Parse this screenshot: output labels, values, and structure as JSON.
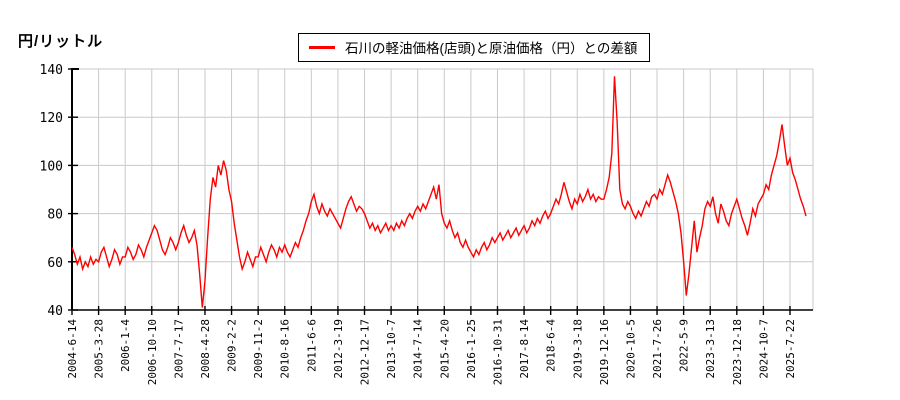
{
  "y_axis_title": "円/リットル",
  "legend": {
    "label": "石川の軽油価格(店頭)と原油価格（円）との差額",
    "series_color": "#ff0000"
  },
  "colors": {
    "background": "#ffffff",
    "grid": "#c9c9c9",
    "axis": "#000000",
    "series": "#ff0000"
  },
  "chart_data": {
    "type": "line",
    "title": "石川の軽油価格(店頭)と原油価格（円）との差額",
    "xlabel": "",
    "ylabel": "円/リットル",
    "ylim": [
      40,
      140
    ],
    "y_ticks": [
      40,
      60,
      80,
      100,
      120,
      140
    ],
    "grid": true,
    "legend_position": "top-center",
    "x_tick_labels": [
      "2004-6-14",
      "2005-3-28",
      "2006-1-4",
      "2006-10-10",
      "2007-7-17",
      "2008-4-28",
      "2009-2-2",
      "2009-11-2",
      "2010-8-16",
      "2011-6-6",
      "2012-3-19",
      "2012-12-17",
      "2013-10-7",
      "2014-7-14",
      "2015-4-20",
      "2016-1-25",
      "2016-10-31",
      "2017-8-14",
      "2018-6-4",
      "2019-3-18",
      "2019-12-16",
      "2020-10-5",
      "2021-7-26",
      "2022-5-9",
      "2023-3-13",
      "2023-12-18",
      "2024-10-7",
      "2025-7-22"
    ],
    "points_per_tick_interval": 10,
    "series": [
      {
        "name": "石川の軽油価格(店頭)と原油価格（円）との差額",
        "color": "#ff0000",
        "values": [
          66,
          63,
          59,
          62,
          57,
          60,
          58,
          62,
          59,
          61,
          60,
          64,
          66,
          62,
          58,
          61,
          65,
          63,
          59,
          62,
          62,
          66,
          64,
          61,
          63,
          67,
          65,
          62,
          66,
          69,
          72,
          75,
          73,
          69,
          65,
          63,
          66,
          70,
          68,
          65,
          68,
          72,
          75,
          71,
          68,
          70,
          73,
          67,
          55,
          41,
          52,
          70,
          86,
          95,
          91,
          100,
          96,
          102,
          98,
          90,
          85,
          76,
          69,
          62,
          57,
          60,
          64,
          61,
          58,
          62,
          62,
          66,
          63,
          60,
          64,
          67,
          65,
          62,
          66,
          64,
          67,
          64,
          62,
          65,
          68,
          66,
          70,
          73,
          77,
          80,
          85,
          88,
          83,
          80,
          84,
          81,
          79,
          82,
          80,
          78,
          76,
          74,
          78,
          82,
          85,
          87,
          84,
          81,
          83,
          82,
          80,
          77,
          74,
          76,
          73,
          75,
          72,
          74,
          76,
          73,
          75,
          73,
          76,
          74,
          77,
          75,
          78,
          80,
          78,
          81,
          83,
          81,
          84,
          82,
          85,
          88,
          91,
          86,
          92,
          80,
          76,
          74,
          77,
          73,
          70,
          72,
          68,
          66,
          69,
          66,
          64,
          62,
          65,
          63,
          66,
          68,
          65,
          67,
          70,
          68,
          70,
          72,
          69,
          71,
          73,
          70,
          72,
          74,
          71,
          73,
          75,
          72,
          74,
          77,
          75,
          78,
          76,
          79,
          81,
          78,
          80,
          83,
          86,
          84,
          88,
          93,
          89,
          85,
          82,
          86,
          84,
          88,
          85,
          87,
          90,
          86,
          88,
          85,
          87,
          86,
          86,
          90,
          95,
          105,
          137,
          118,
          90,
          84,
          82,
          85,
          83,
          80,
          78,
          81,
          79,
          82,
          85,
          83,
          87,
          88,
          86,
          90,
          88,
          92,
          96,
          93,
          89,
          85,
          80,
          72,
          60,
          46,
          55,
          66,
          77,
          64,
          70,
          75,
          82,
          85,
          83,
          87,
          80,
          76,
          84,
          81,
          77,
          75,
          80,
          83,
          86,
          82,
          78,
          75,
          71,
          76,
          82,
          79,
          84,
          86,
          88,
          92,
          90,
          96,
          100,
          104,
          110,
          117,
          108,
          100,
          103,
          97,
          94,
          90,
          86,
          83,
          79
        ]
      }
    ]
  }
}
